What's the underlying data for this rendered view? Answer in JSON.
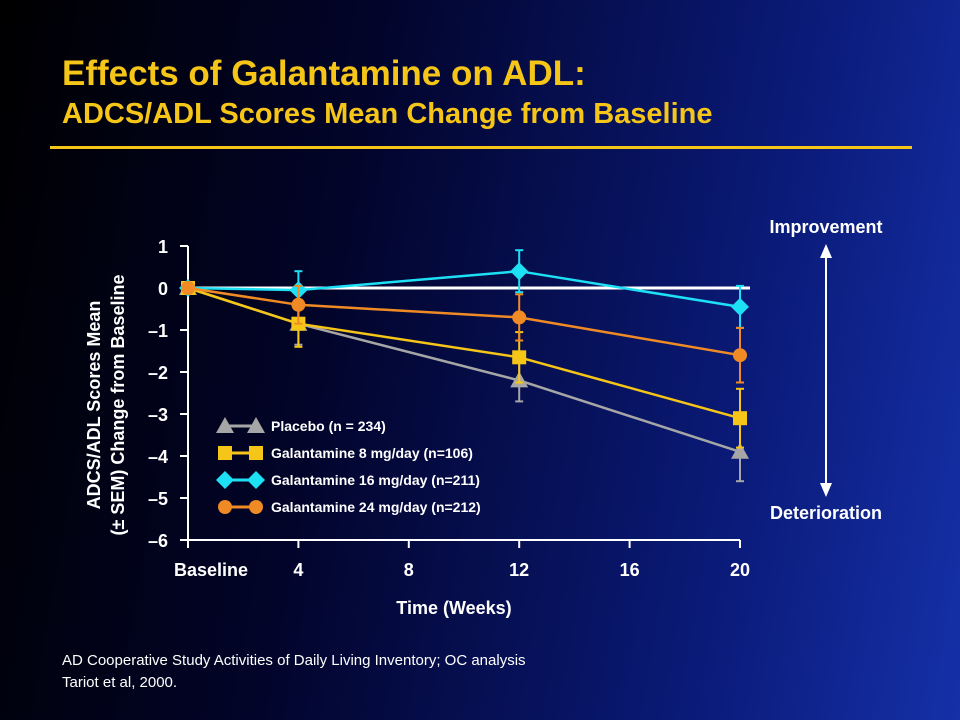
{
  "header": {
    "title": "Effects of Galantamine on ADL:",
    "subtitle": "ADCS/ADL Scores Mean Change from Baseline"
  },
  "chart_data": {
    "type": "line",
    "ylabel_lines": [
      "ADCS/ADL Scores Mean",
      "(± SEM) Change from Baseline"
    ],
    "xlabel": "Time (Weeks)",
    "x": [
      0,
      4,
      12,
      20
    ],
    "xticks": [
      0,
      4,
      8,
      12,
      16,
      20
    ],
    "xtick_labels": [
      "Baseline",
      "4",
      "8",
      "12",
      "16",
      "20"
    ],
    "xlim": [
      0,
      20
    ],
    "ylim": [
      -6,
      1
    ],
    "yticks": [
      1,
      0,
      -1,
      -2,
      -3,
      -4,
      -5,
      -6
    ],
    "ytick_labels": [
      "1",
      "0",
      "–1",
      "–2",
      "–3",
      "–4",
      "–5",
      "–6"
    ],
    "series": [
      {
        "name": "Placebo (n = 234)",
        "color": "#a6a6a6",
        "marker": "triangle",
        "values": [
          0,
          -0.85,
          -2.2,
          -3.9
        ],
        "err": [
          0,
          0.5,
          0.5,
          0.7
        ]
      },
      {
        "name": "Galantamine 8 mg/day (n=106)",
        "color": "#f5c518",
        "marker": "square",
        "values": [
          0,
          -0.85,
          -1.65,
          -3.1
        ],
        "err": [
          0,
          0.55,
          0.6,
          0.7
        ]
      },
      {
        "name": "Galantamine 16 mg/day (n=211)",
        "color": "#1ee0f5",
        "marker": "diamond",
        "values": [
          0,
          -0.05,
          0.4,
          -0.45
        ],
        "err": [
          0,
          0.45,
          0.5,
          0.5
        ]
      },
      {
        "name": "Galantamine 24 mg/day (n=212)",
        "color": "#f08a24",
        "marker": "circle",
        "values": [
          0,
          -0.4,
          -0.7,
          -1.6
        ],
        "err": [
          0,
          0.45,
          0.55,
          0.65
        ]
      }
    ],
    "annotations": {
      "top": "Improvement",
      "bottom": "Deterioration"
    }
  },
  "footer": {
    "line1": "AD Cooperative Study Activities of Daily Living Inventory; OC analysis",
    "line2": "Tariot et al, 2000."
  }
}
